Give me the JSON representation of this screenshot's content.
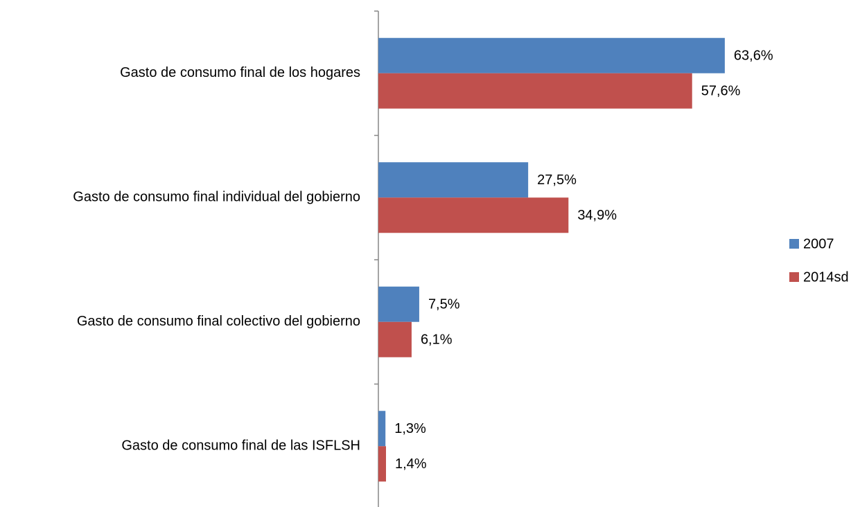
{
  "chart_data": {
    "type": "bar",
    "orientation": "horizontal",
    "categories": [
      "Gasto de consumo final de los hogares",
      "Gasto de consumo final individual del gobierno",
      "Gasto de consumo final colectivo del gobierno",
      "Gasto de consumo final de las ISFLSH"
    ],
    "series": [
      {
        "name": "2007",
        "color": "#4f81bd",
        "values": [
          63.6,
          27.5,
          7.5,
          1.3
        ],
        "value_labels": [
          "63,6%",
          "27,5%",
          "7,5%",
          "1,3%"
        ]
      },
      {
        "name": "2014sd",
        "color": "#c0504d",
        "values": [
          57.6,
          34.9,
          6.1,
          1.4
        ],
        "value_labels": [
          "57,6%",
          "34,9%",
          "6,1%",
          "1,4%"
        ]
      }
    ],
    "legend": "right"
  }
}
